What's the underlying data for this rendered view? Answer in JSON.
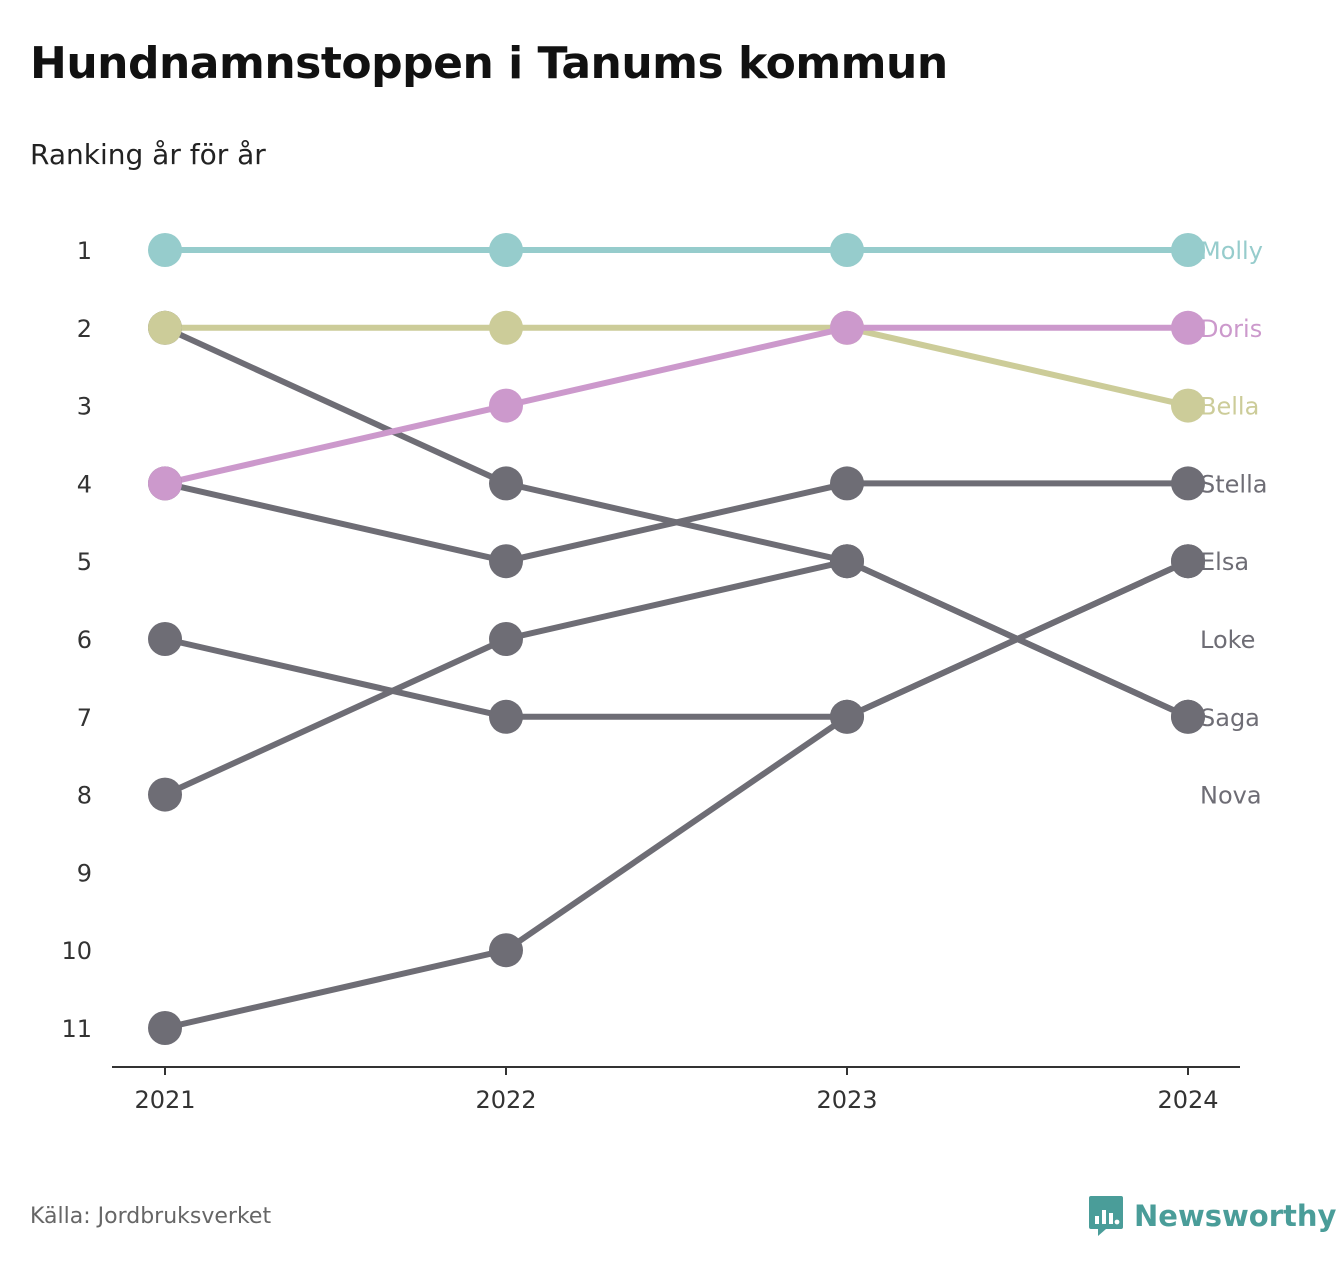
{
  "title": "Hundnamnstoppen i Tanums kommun",
  "subtitle": "Ranking år för år",
  "source": "Källa: Jordbruksverket",
  "brand": {
    "name": "Newsworthy",
    "icon": "bar-chart-speech-bubble-icon",
    "color": "#4a9d99"
  },
  "chart_data": {
    "type": "line",
    "x": [
      "2021",
      "2022",
      "2023",
      "2024"
    ],
    "y_ticks": [
      1,
      2,
      3,
      4,
      5,
      6,
      7,
      8,
      9,
      10,
      11
    ],
    "y_reversed": true,
    "ylim": [
      1,
      11
    ],
    "grid": false,
    "legend": "labels at right end of each line",
    "series": [
      {
        "name": "Molly",
        "color": "#96cccc",
        "values": [
          1,
          1,
          1,
          1
        ],
        "label_rank": 1
      },
      {
        "name": "Doris",
        "color": "#cc99cc",
        "values": [
          4,
          3,
          2,
          2
        ],
        "label_rank": 2
      },
      {
        "name": "Bella",
        "color": "#cccc99",
        "values": [
          2,
          2,
          2,
          3
        ],
        "label_rank": 3
      },
      {
        "name": "Stella",
        "color": "#6e6d75",
        "values": [
          4,
          5,
          4,
          4
        ],
        "label_rank": 4
      },
      {
        "name": "Elsa",
        "color": "#6e6d75",
        "values": [
          11,
          10,
          7,
          5
        ],
        "label_rank": 5
      },
      {
        "name": "Loke",
        "color": "#6e6d75",
        "values": [
          6,
          7,
          7,
          5
        ],
        "label_rank": 6
      },
      {
        "name": "Saga",
        "color": "#6e6d75",
        "values": [
          2,
          4,
          5,
          7
        ],
        "label_rank": 7
      },
      {
        "name": "Nova",
        "color": "#6e6d75",
        "values": [
          8,
          6,
          5,
          7
        ],
        "label_rank": 8
      }
    ]
  }
}
